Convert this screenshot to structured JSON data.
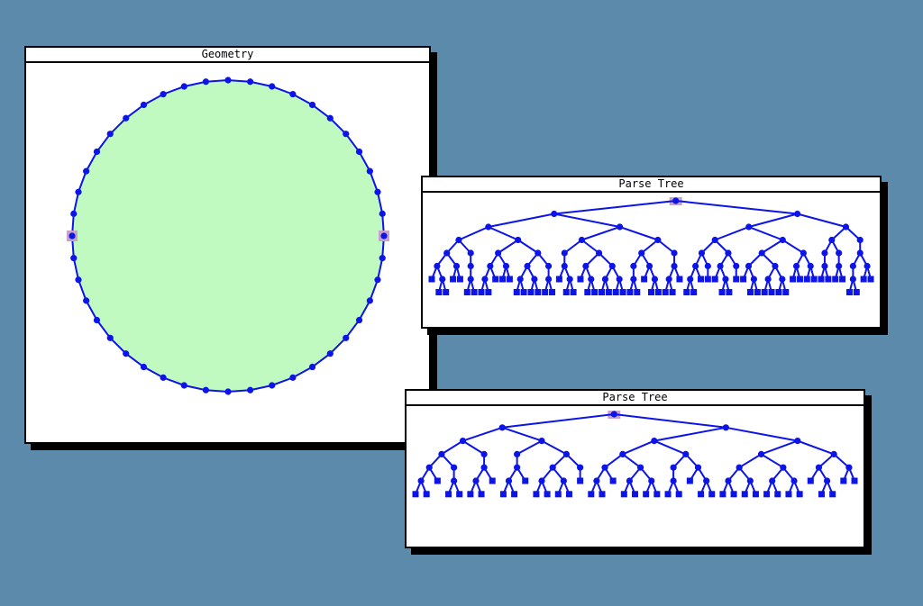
{
  "windows": {
    "geometry": {
      "title": "Geometry"
    },
    "parse_tree_1": {
      "title": "Parse Tree"
    },
    "parse_tree_2": {
      "title": "Parse Tree"
    }
  },
  "colors": {
    "desktop": "#5b8aab",
    "circle_fill": "#c0fac0",
    "stroke": "#0c14e8",
    "selection": "#c8a0c8"
  },
  "geometry": {
    "vertex_count": 44,
    "selected_vertices": [
      "left",
      "right"
    ]
  },
  "trees": {
    "parse_tree_1": {
      "depth": 7,
      "selected": "root"
    },
    "parse_tree_2": {
      "depth": 6,
      "selected": "root"
    }
  }
}
